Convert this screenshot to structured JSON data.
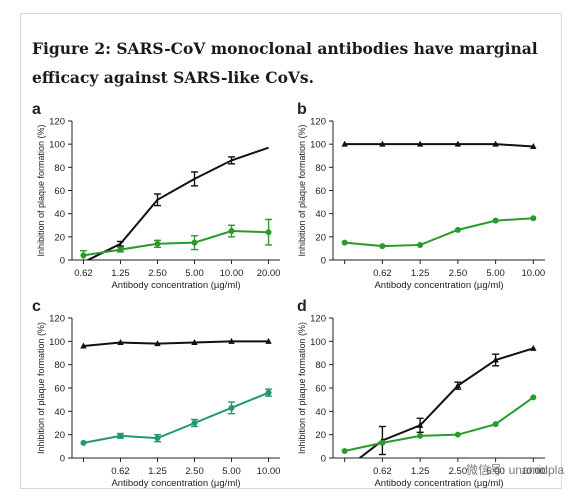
{
  "figure": {
    "title": "Figure 2: SARS-CoV monoclonal antibodies have marginal efficacy against SARS-like CoVs.",
    "watermark": "微信号: unamidpla"
  },
  "colors": {
    "black": "#111111",
    "green": "#2a9a2a",
    "teal": "#1f9a6e"
  },
  "chart_data": [
    {
      "panel": "a",
      "type": "line",
      "xlabel": "Antibody concentration (µg/ml)",
      "ylabel": "Inhibition of plaque formation (%)",
      "ylim": [
        0,
        120
      ],
      "yticks": [
        0,
        20,
        40,
        60,
        80,
        100,
        120
      ],
      "categories": [
        "0.62",
        "1.25",
        "2.50",
        "5.00",
        "10.00",
        "20.00"
      ],
      "series": [
        {
          "color": "black",
          "marker": "none",
          "values": [
            -2,
            14,
            52,
            70,
            86,
            97
          ],
          "errors": [
            0,
            2,
            5,
            6,
            3,
            0
          ]
        },
        {
          "color": "green",
          "marker": "circle",
          "values": [
            4,
            9,
            14,
            15,
            25,
            24
          ],
          "errors": [
            4,
            2,
            3,
            6,
            5,
            11
          ]
        }
      ]
    },
    {
      "panel": "b",
      "type": "line",
      "xlabel": "Antibody concentration (µg/ml)",
      "ylabel": "Inhibition of plaque formation (%)",
      "ylim": [
        0,
        120
      ],
      "yticks": [
        0,
        20,
        40,
        60,
        80,
        100,
        120
      ],
      "categories": [
        "",
        "0.62",
        "1.25",
        "2.50",
        "5.00",
        "10.00"
      ],
      "series": [
        {
          "color": "black",
          "marker": "triangle",
          "values": [
            100,
            100,
            100,
            100,
            100,
            98
          ],
          "errors": [
            0,
            0,
            0,
            0,
            0,
            0
          ]
        },
        {
          "color": "green",
          "marker": "circle",
          "values": [
            15,
            12,
            13,
            26,
            34,
            36
          ],
          "errors": [
            0,
            0,
            0,
            0,
            0,
            0
          ]
        }
      ]
    },
    {
      "panel": "c",
      "type": "line",
      "xlabel": "Antibody concentration (µg/ml)",
      "ylabel": "Inhibition of plaque formation (%)",
      "ylim": [
        0,
        120
      ],
      "yticks": [
        0,
        20,
        40,
        60,
        80,
        100,
        120
      ],
      "categories": [
        "",
        "0.62",
        "1.25",
        "2.50",
        "5.00",
        "10.00"
      ],
      "series": [
        {
          "color": "black",
          "marker": "triangle",
          "values": [
            96,
            99,
            98,
            99,
            100,
            100
          ],
          "errors": [
            0,
            0,
            0,
            0,
            0,
            0
          ]
        },
        {
          "color": "teal",
          "marker": "circle",
          "values": [
            13,
            19,
            17,
            30,
            43,
            56
          ],
          "errors": [
            0,
            2,
            3,
            3,
            5,
            3
          ]
        }
      ]
    },
    {
      "panel": "d",
      "type": "line",
      "xlabel": "Antibody concentration (µg/ml)",
      "ylabel": "Inhibition of plaque formation (%)",
      "ylim": [
        0,
        120
      ],
      "yticks": [
        0,
        20,
        40,
        60,
        80,
        100,
        120
      ],
      "categories": [
        "",
        "0.62",
        "1.25",
        "2.50",
        "5.00",
        "10.00"
      ],
      "series": [
        {
          "color": "black",
          "marker": "triangle",
          "values": [
            -10,
            15,
            28,
            62,
            84,
            94
          ],
          "errors": [
            0,
            12,
            6,
            3,
            5,
            0
          ]
        },
        {
          "color": "green",
          "marker": "circle",
          "values": [
            6,
            13,
            19,
            20,
            29,
            52
          ],
          "errors": [
            0,
            0,
            0,
            0,
            0,
            0
          ]
        }
      ]
    }
  ]
}
